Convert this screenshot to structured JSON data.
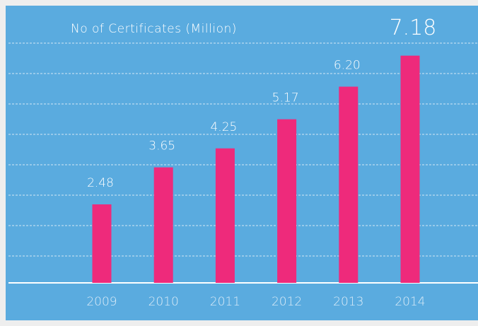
{
  "chart_data": {
    "type": "bar",
    "title": "No of Certificates (Million)",
    "categories": [
      "2009",
      "2010",
      "2011",
      "2012",
      "2013",
      "2014"
    ],
    "values": [
      2.48,
      3.65,
      4.25,
      5.17,
      6.2,
      7.18
    ],
    "value_labels": [
      "2.48",
      "3.65",
      "4.25",
      "5.17",
      "6.20",
      "7.18"
    ],
    "color": "#ee2a7b",
    "background": "#5aabdf",
    "ylim": [
      0,
      8
    ],
    "grid": true
  }
}
